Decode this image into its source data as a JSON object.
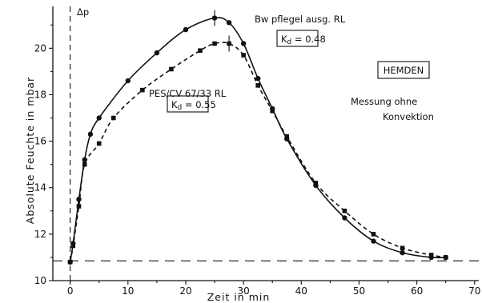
{
  "chart_data": {
    "type": "line",
    "xlabel": "Zeit in min",
    "ylabel": "Absolute Feuchte in mbar",
    "xlim": [
      -3,
      71
    ],
    "ylim": [
      10,
      21.8
    ],
    "xticks": [
      0,
      10,
      20,
      30,
      40,
      50,
      60,
      70
    ],
    "yticks": [
      10,
      12,
      14,
      16,
      18,
      20
    ],
    "baseline_y": 10.85,
    "delta_p_label": "Δp",
    "grid": false,
    "series": [
      {
        "name": "Bw pflegel ausg. RL",
        "kd_label": "K_d = 0.48",
        "line_style": "solid",
        "marker": "circle",
        "x": [
          0,
          0.5,
          1.5,
          2.5,
          3.5,
          5,
          10,
          15,
          20,
          25,
          27.5,
          30,
          32.5,
          35,
          37.5,
          42.5,
          47.5,
          52.5,
          57.5,
          62.5,
          65
        ],
        "y": [
          10.8,
          11.6,
          13.5,
          15.2,
          16.3,
          17.0,
          18.6,
          19.8,
          20.8,
          21.3,
          21.1,
          20.2,
          18.7,
          17.4,
          16.1,
          14.1,
          12.7,
          11.7,
          11.2,
          11.0,
          11.0
        ]
      },
      {
        "name": "PES/CV 67/33 RL",
        "kd_label": "K_d = 0.55",
        "line_style": "dashed",
        "marker": "square",
        "x": [
          0,
          0.5,
          1.5,
          2.5,
          5,
          7.5,
          12.5,
          17.5,
          22.5,
          25,
          27.5,
          30,
          32.5,
          35,
          37.5,
          42.5,
          47.5,
          52.5,
          57.5,
          62.5,
          65
        ],
        "y": [
          10.8,
          11.5,
          13.2,
          15.0,
          15.9,
          17.0,
          18.2,
          19.1,
          19.9,
          20.2,
          20.2,
          19.7,
          18.4,
          17.3,
          16.2,
          14.2,
          13.0,
          12.0,
          11.4,
          11.1,
          11.0
        ]
      }
    ],
    "annotations": {
      "hemden": "HEMDEN",
      "messung_line1": "Messung ohne",
      "messung_line2": "Konvektion"
    }
  }
}
